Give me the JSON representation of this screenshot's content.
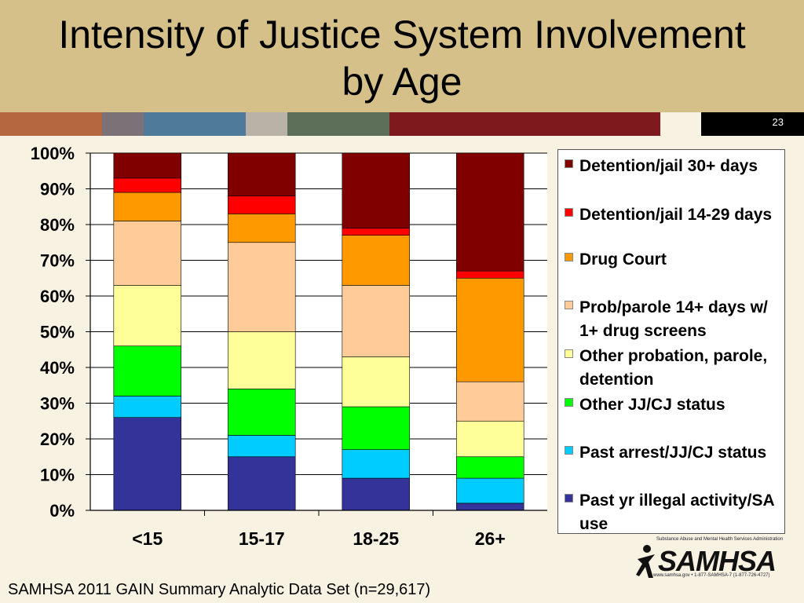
{
  "slide": {
    "title_line1": "Intensity of Justice System Involvement",
    "title_line2": "by Age",
    "slide_number": "23",
    "footer": "SAMHSA 2011 GAIN Summary Analytic Data Set (n=29,617)",
    "logo": {
      "wordmark": "SAMHSA",
      "tagline": "Substance Abuse and Mental Health Services Administration",
      "contact": "www.samhsa.gov • 1-877-SAMHSA-7 (1-877-726-4727)"
    },
    "stripe_colors": [
      "#b5683f",
      "#7a7276",
      "#4f7a9a",
      "#b8b3a6",
      "#5d6f58",
      "#7e1a1e",
      "#f7f2e1",
      "#000000"
    ]
  },
  "chart_data": {
    "type": "bar",
    "stacked": true,
    "stack_normalized": true,
    "categories": [
      "<15",
      "15-17",
      "18-25",
      "26+"
    ],
    "y_tick_labels": [
      "0%",
      "10%",
      "20%",
      "30%",
      "40%",
      "50%",
      "60%",
      "70%",
      "80%",
      "90%",
      "100%"
    ],
    "ylim": [
      0,
      100
    ],
    "grid": "horizontal",
    "legend_position": "right",
    "series": [
      {
        "name": "Past yr illegal activity/SA use",
        "color": "#333399",
        "values": [
          26,
          15,
          9,
          2
        ]
      },
      {
        "name": "Past arrest/JJ/CJ status",
        "color": "#00ccff",
        "values": [
          6,
          6,
          8,
          7
        ]
      },
      {
        "name": "Other JJ/CJ status",
        "color": "#00ff00",
        "values": [
          14,
          13,
          12,
          6
        ]
      },
      {
        "name": "Other probation, parole, detention",
        "color": "#ffff99",
        "values": [
          17,
          16,
          14,
          10
        ]
      },
      {
        "name": "Prob/parole 14+ days w/ 1+ drug screens",
        "color": "#ffcc99",
        "values": [
          18,
          25,
          20,
          11
        ]
      },
      {
        "name": "Drug Court",
        "color": "#ff9900",
        "values": [
          8,
          8,
          14,
          29
        ]
      },
      {
        "name": "Detention/jail 14-29 days",
        "color": "#ff0000",
        "values": [
          4,
          5,
          2,
          2
        ]
      },
      {
        "name": "Detention/jail 30+ days",
        "color": "#800000",
        "values": [
          7,
          12,
          21,
          33
        ]
      }
    ]
  }
}
